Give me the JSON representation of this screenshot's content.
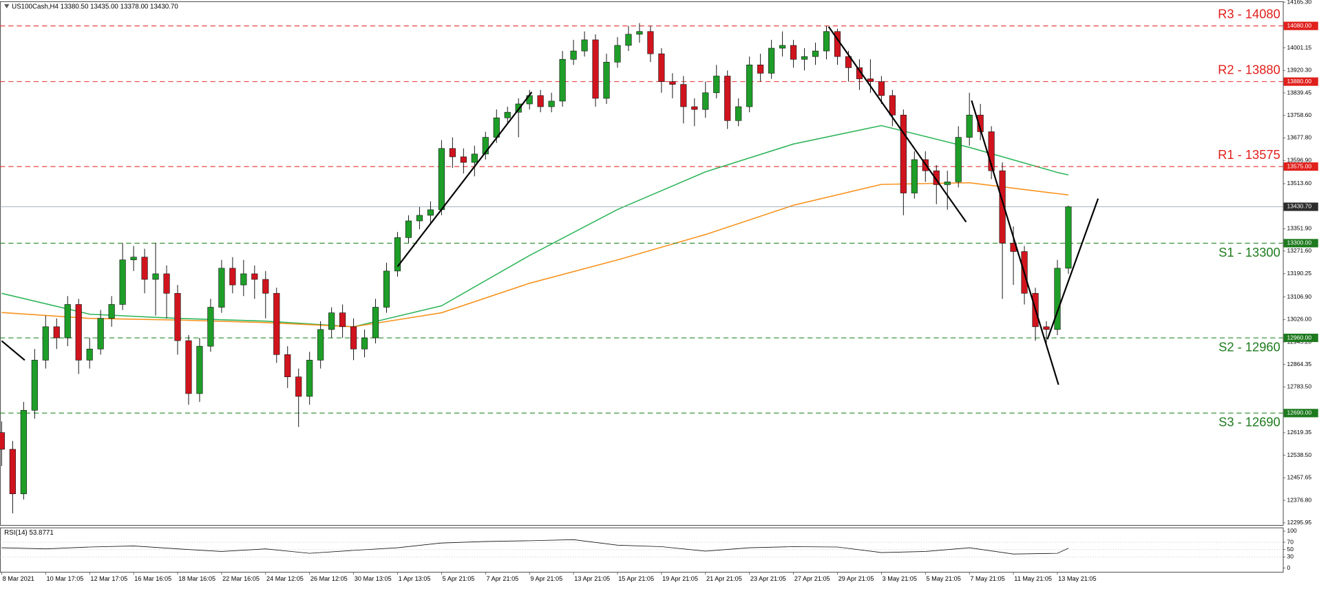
{
  "chart_data": [
    {
      "type": "candlestick",
      "title": "US100Cash,H4  13380.50 13435.00 13378.00 13430.70",
      "xlim": [
        -0.15,
        116.5
      ],
      "ylim": [
        12287,
        14167
      ],
      "yticks": [
        {
          "value": 14165.3,
          "label": "14165.30"
        },
        {
          "value": 14001.15,
          "label": "14001.15"
        },
        {
          "value": 13920.3,
          "label": "13920.30"
        },
        {
          "value": 13839.45,
          "label": "13839.45"
        },
        {
          "value": 13758.6,
          "label": "13758.60"
        },
        {
          "value": 13677.8,
          "label": "13677.80"
        },
        {
          "value": 13596.9,
          "label": "13596.90"
        },
        {
          "value": 13513.6,
          "label": "13513.60"
        },
        {
          "value": 13351.9,
          "label": "13351.90"
        },
        {
          "value": 13271.6,
          "label": "13271.60"
        },
        {
          "value": 13190.25,
          "label": "13190.25"
        },
        {
          "value": 13106.9,
          "label": "13106.90"
        },
        {
          "value": 13026,
          "label": "13026.00"
        },
        {
          "value": 12945.2,
          "label": "12945.20"
        },
        {
          "value": 12864.35,
          "label": "12864.35"
        },
        {
          "value": 12783.5,
          "label": "12783.50"
        },
        {
          "value": 12619.35,
          "label": "12619.35"
        },
        {
          "value": 12538.5,
          "label": "12538.50"
        },
        {
          "value": 12457.65,
          "label": "12457.65"
        },
        {
          "value": 12376.8,
          "label": "12376.80"
        },
        {
          "value": 12295.95,
          "label": "12295.95"
        }
      ],
      "xticks": [
        {
          "value": 0,
          "label": "8 Mar 2021"
        },
        {
          "value": 4,
          "label": "10 Mar 17:05"
        },
        {
          "value": 8,
          "label": "12 Mar 17:05"
        },
        {
          "value": 12,
          "label": "16 Mar 16:05"
        },
        {
          "value": 16,
          "label": "18 Mar 16:05"
        },
        {
          "value": 20,
          "label": "22 Mar 16:05"
        },
        {
          "value": 24,
          "label": "24 Mar 12:05"
        },
        {
          "value": 28,
          "label": "26 Mar 12:05"
        },
        {
          "value": 32,
          "label": "30 Mar 13:05"
        },
        {
          "value": 36,
          "label": "1 Apr 13:05"
        },
        {
          "value": 40,
          "label": "5 Apr 21:05"
        },
        {
          "value": 44,
          "label": "7 Apr 21:05"
        },
        {
          "value": 48,
          "label": "9 Apr 21:05"
        },
        {
          "value": 52,
          "label": "13 Apr 21:05"
        },
        {
          "value": 56,
          "label": "15 Apr 21:05"
        },
        {
          "value": 60,
          "label": "19 Apr 21:05"
        },
        {
          "value": 64,
          "label": "21 Apr 21:05"
        },
        {
          "value": 68,
          "label": "23 Apr 21:05"
        },
        {
          "value": 72,
          "label": "27 Apr 21:05"
        },
        {
          "value": 76,
          "label": "29 Apr 21:05"
        },
        {
          "value": 80,
          "label": "3 May 21:05"
        },
        {
          "value": 84,
          "label": "5 May 21:05"
        },
        {
          "value": 88,
          "label": "7 May 21:05"
        },
        {
          "value": 92,
          "label": "11 May 21:05"
        },
        {
          "value": 96,
          "label": "13 May 21:05"
        }
      ],
      "open": [
        12620,
        12560,
        12400,
        12700,
        12880,
        13000,
        12960,
        13080,
        12880,
        12920,
        13030,
        13080,
        13240,
        13250,
        13170,
        13190,
        13120,
        12950,
        12760,
        12930,
        13070,
        13210,
        13150,
        13190,
        13170,
        13120,
        12900,
        12820,
        12750,
        12880,
        12990,
        13050,
        13000,
        12920,
        12960,
        13070,
        13200,
        13320,
        13380,
        13400,
        13420,
        13640,
        13610,
        13590,
        13620,
        13680,
        13750,
        13770,
        13800,
        13830,
        13790,
        13810,
        13960,
        13990,
        14030,
        13820,
        13950,
        14010,
        14050,
        14060,
        13980,
        13880,
        13870,
        13790,
        13780,
        13840,
        13900,
        13740,
        13790,
        13940,
        13910,
        14000,
        14010,
        13960,
        13970,
        13990,
        14060,
        13970,
        13930,
        13890,
        13880,
        13830,
        13760,
        13480,
        13600,
        13560,
        13510,
        13520,
        13680,
        13760,
        13700,
        13560,
        13300,
        13270,
        13120,
        13000,
        12990,
        13210
      ],
      "high": [
        12660,
        12590,
        12730,
        12920,
        13040,
        13030,
        13110,
        13100,
        12960,
        13060,
        13110,
        13300,
        13290,
        13280,
        13300,
        13220,
        13150,
        12970,
        12960,
        13100,
        13240,
        13250,
        13240,
        13220,
        13200,
        13140,
        12930,
        12850,
        12910,
        13020,
        13070,
        13080,
        13030,
        12990,
        13100,
        13230,
        13340,
        13400,
        13430,
        13450,
        13670,
        13680,
        13640,
        13650,
        13700,
        13780,
        13790,
        13820,
        13850,
        13850,
        13840,
        13990,
        14030,
        14060,
        14050,
        13980,
        14040,
        14080,
        14090,
        14080,
        14000,
        13910,
        13900,
        13820,
        13880,
        13940,
        13920,
        13820,
        13970,
        13980,
        14030,
        14060,
        14030,
        14000,
        14020,
        14080,
        14070,
        13990,
        13960,
        13960,
        13900,
        13850,
        13780,
        13630,
        13630,
        13580,
        13560,
        13720,
        13840,
        13800,
        13720,
        13590,
        13360,
        13290,
        13140,
        13020,
        13240,
        13435
      ],
      "low": [
        12500,
        12330,
        12380,
        12670,
        12850,
        12920,
        12930,
        12830,
        12850,
        12900,
        13000,
        13060,
        13200,
        13120,
        13040,
        13030,
        12900,
        12720,
        12730,
        12910,
        13050,
        13120,
        13110,
        13100,
        13030,
        12870,
        12780,
        12640,
        12720,
        12850,
        12960,
        12960,
        12880,
        12890,
        12940,
        13050,
        13180,
        13300,
        13350,
        13370,
        13400,
        13570,
        13550,
        13540,
        13600,
        13660,
        13730,
        13680,
        13780,
        13770,
        13770,
        13790,
        13940,
        13970,
        13790,
        13800,
        13930,
        13990,
        14020,
        13950,
        13840,
        13820,
        13730,
        13720,
        13750,
        13820,
        13710,
        13720,
        13770,
        13880,
        13890,
        13970,
        13930,
        13920,
        13940,
        13960,
        13940,
        13880,
        13850,
        13840,
        13800,
        13720,
        13400,
        13460,
        13520,
        13440,
        13420,
        13500,
        13650,
        13670,
        13530,
        13100,
        13150,
        13080,
        12950,
        12930,
        12970,
        13190
      ],
      "close": [
        12560,
        12400,
        12700,
        12880,
        13000,
        12960,
        13080,
        12880,
        12920,
        13030,
        13080,
        13240,
        13250,
        13170,
        13190,
        13120,
        12950,
        12760,
        12930,
        13070,
        13210,
        13150,
        13190,
        13170,
        13120,
        12900,
        12820,
        12750,
        12880,
        12990,
        13050,
        13000,
        12920,
        12960,
        13070,
        13200,
        13320,
        13380,
        13400,
        13420,
        13640,
        13610,
        13590,
        13620,
        13680,
        13750,
        13770,
        13800,
        13830,
        13790,
        13810,
        13960,
        13990,
        14030,
        13820,
        13950,
        14010,
        14050,
        14060,
        13980,
        13880,
        13870,
        13790,
        13780,
        13840,
        13900,
        13740,
        13790,
        13940,
        13910,
        14000,
        14010,
        13960,
        13970,
        13990,
        14060,
        13970,
        13930,
        13890,
        13880,
        13830,
        13760,
        13480,
        13600,
        13560,
        13510,
        13520,
        13680,
        13760,
        13700,
        13560,
        13300,
        13270,
        13120,
        13000,
        12990,
        13210,
        13430.7
      ],
      "up_color": "#1e9e28",
      "down_color": "#d0141e",
      "moving_averages": [
        {
          "color": "#2fb55a",
          "x": [
            0,
            8,
            16,
            24,
            32,
            40,
            48,
            56,
            64,
            72,
            80,
            88,
            96,
            97
          ],
          "values": [
            13120,
            13045,
            13030,
            13020,
            13000,
            13075,
            13256,
            13421,
            13556,
            13656,
            13722,
            13644,
            13554,
            13545
          ]
        },
        {
          "color": "#f7931e",
          "x": [
            0,
            8,
            16,
            24,
            32,
            40,
            48,
            56,
            64,
            72,
            80,
            88,
            96,
            97
          ],
          "values": [
            13051,
            13030,
            13024,
            13015,
            13000,
            13050,
            13156,
            13240,
            13331,
            13436,
            13511,
            13517,
            13478,
            13473
          ]
        }
      ],
      "levels": [
        {
          "label": "R3 - 14080",
          "value": 14080,
          "value_label": "14080.00",
          "color": "#e0201c"
        },
        {
          "label": "R2 - 13880",
          "value": 13880,
          "value_label": "13880.00",
          "color": "#e0201c"
        },
        {
          "label": "R1 - 13575",
          "value": 13575,
          "value_label": "13575.00",
          "color": "#e0201c"
        },
        {
          "label": "S1 - 13300",
          "value": 13300,
          "value_label": "13300.00",
          "color": "#1e7a1e"
        },
        {
          "label": "S2 - 12960",
          "value": 12960,
          "value_label": "12960.00",
          "color": "#1e7a1e"
        },
        {
          "label": "S3 - 12690",
          "value": 12690,
          "value_label": "12690.00",
          "color": "#1e7a1e"
        }
      ],
      "last_price": 13430.7,
      "last_price_label": "13430.70",
      "trendlines": [
        {
          "x": [
            0,
            2.1
          ],
          "y": [
            12949,
            12880
          ]
        },
        {
          "x": [
            36.0,
            48.2
          ],
          "y": [
            13216,
            13842
          ]
        },
        {
          "x": [
            75.2,
            87.7
          ],
          "y": [
            14077,
            13376
          ]
        },
        {
          "x": [
            88.2,
            96.1
          ],
          "y": [
            13812,
            12792
          ]
        },
        {
          "x": [
            95.1,
            99.7
          ],
          "y": [
            12955,
            13460
          ]
        }
      ]
    },
    {
      "type": "line",
      "title": "RSI(14) 53.8771",
      "ylim": [
        0,
        100
      ],
      "yticks": [
        0,
        30,
        50,
        70,
        100
      ],
      "color": "#111111",
      "x": [
        0,
        4,
        8,
        12,
        16,
        20,
        24,
        28,
        32,
        36,
        40,
        44,
        48,
        52,
        56,
        60,
        64,
        68,
        72,
        76,
        80,
        84,
        88,
        92,
        96,
        97
      ],
      "values": [
        55,
        52,
        57,
        60,
        52,
        45,
        52,
        40,
        48,
        55,
        68,
        72,
        74,
        77,
        62,
        58,
        46,
        55,
        58,
        57,
        42,
        45,
        55,
        38,
        40,
        53.8771
      ]
    }
  ]
}
